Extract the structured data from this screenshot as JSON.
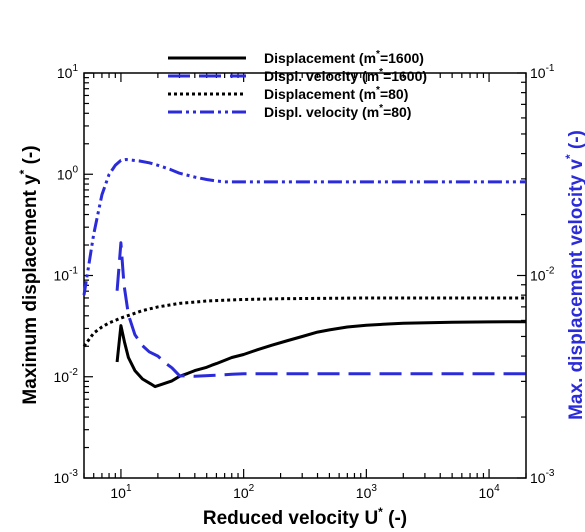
{
  "chart_data": {
    "type": "line",
    "xlabel": "Reduced velocity U* (-)",
    "ylabel_left": "Maximum displacement y* (-)",
    "ylabel_right": "Max. displacement velocity v* (-)",
    "x_scale": "log",
    "y_scale": "log",
    "xlim": [
      5,
      20000
    ],
    "ylim_left": [
      0.001,
      10
    ],
    "ylim_right": [
      0.001,
      0.1
    ],
    "x_tick_labels": [
      "10^1",
      "10^2",
      "10^3",
      "10^4"
    ],
    "y_left_tick_labels": [
      "10^-3",
      "10^-2",
      "10^-1",
      "10^0",
      "10^1"
    ],
    "y_right_tick_labels": [
      "10^-3",
      "10^-2",
      "10^-1"
    ],
    "grid": false,
    "legend_position": "top",
    "colors": {
      "black": "#000000",
      "blue": "#2b2bd9"
    },
    "series": [
      {
        "name": "Displacement (m*=1600)",
        "axis": "left",
        "color": "#000000",
        "dash": "solid",
        "x": [
          9.3,
          10,
          10.7,
          11.5,
          13,
          15,
          17.5,
          19,
          22,
          26,
          30,
          35,
          40,
          50,
          55,
          60,
          70,
          80,
          100,
          130,
          170,
          230,
          300,
          400,
          500,
          700,
          1000,
          1500,
          2000,
          5000,
          10000,
          20000
        ],
        "y": [
          0.014,
          0.032,
          0.022,
          0.0155,
          0.0115,
          0.0095,
          0.0085,
          0.008,
          0.0085,
          0.0091,
          0.0101,
          0.0108,
          0.0115,
          0.0124,
          0.013,
          0.0135,
          0.0145,
          0.0155,
          0.0166,
          0.0185,
          0.0205,
          0.0228,
          0.025,
          0.0276,
          0.029,
          0.031,
          0.0323,
          0.0332,
          0.0338,
          0.0345,
          0.0348,
          0.035
        ]
      },
      {
        "name": "Displ. velocity (m*=1600)",
        "axis": "right",
        "color": "#2b2bd9",
        "dash": "long-dash",
        "x": [
          9.3,
          10,
          10.6,
          11.5,
          13,
          15,
          17,
          20,
          23,
          26,
          30,
          40,
          60,
          80,
          100,
          200,
          500,
          1000,
          5000,
          10000,
          20000
        ],
        "y": [
          0.0084,
          0.0145,
          0.009,
          0.0064,
          0.0051,
          0.0045,
          0.0042,
          0.004,
          0.0037,
          0.0035,
          0.0032,
          0.00318,
          0.00322,
          0.00325,
          0.00327,
          0.00327,
          0.00327,
          0.00327,
          0.00327,
          0.00327,
          0.00327
        ]
      },
      {
        "name": "Displacement (m*=80)",
        "axis": "left",
        "color": "#000000",
        "dash": "dotted",
        "x": [
          5,
          6,
          7,
          8,
          9,
          10,
          12,
          15,
          20,
          30,
          50,
          100,
          200,
          500,
          1000,
          10000,
          20000
        ],
        "y": [
          0.02,
          0.027,
          0.031,
          0.034,
          0.036,
          0.038,
          0.041,
          0.045,
          0.049,
          0.053,
          0.056,
          0.058,
          0.059,
          0.0595,
          0.06,
          0.06,
          0.06
        ]
      },
      {
        "name": "Displ. velocity (m*=80)",
        "axis": "right",
        "color": "#2b2bd9",
        "dash": "dash-dot-dot",
        "x": [
          5,
          6,
          7,
          8,
          9,
          10,
          11,
          12,
          14,
          17,
          20,
          25,
          30,
          40,
          50,
          60,
          70,
          80,
          100,
          200,
          1000,
          10000,
          20000
        ],
        "y": [
          0.008,
          0.016,
          0.025,
          0.0315,
          0.035,
          0.037,
          0.0374,
          0.0372,
          0.0368,
          0.036,
          0.035,
          0.0335,
          0.032,
          0.0306,
          0.0298,
          0.0293,
          0.029,
          0.029,
          0.029,
          0.029,
          0.029,
          0.029,
          0.029
        ]
      }
    ]
  }
}
